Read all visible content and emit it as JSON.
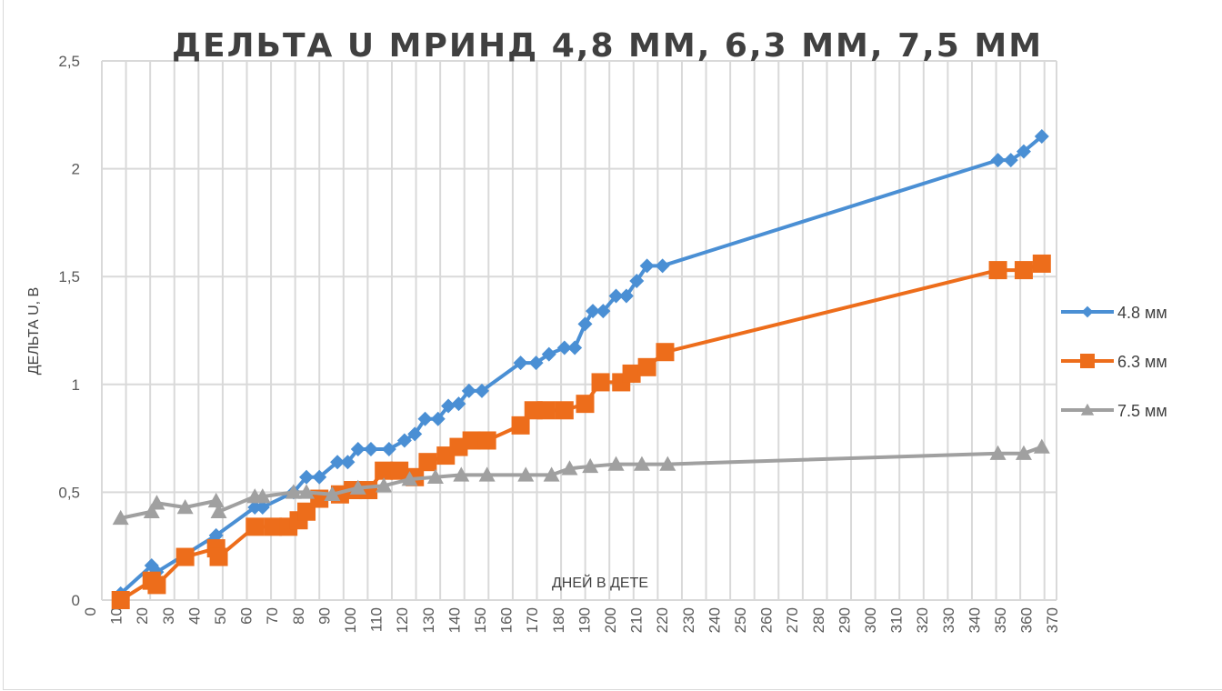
{
  "chart_data": {
    "type": "line",
    "title": "ДЕЛЬТА  U МРИНД 4,8 ММ, 6,3 ММ, 7,5 ММ",
    "xlabel": "ДНЕЙ В ДЕТЕ",
    "ylabel": "ДЕЛЬТА U, В",
    "xlim": [
      0,
      370
    ],
    "ylim": [
      0,
      2.5
    ],
    "x_ticks": [
      "0",
      "10",
      "20",
      "30",
      "40",
      "50",
      "60",
      "70",
      "80",
      "90",
      "100",
      "110",
      "120",
      "130",
      "140",
      "150",
      "160",
      "170",
      "180",
      "190",
      "200",
      "210",
      "220",
      "230",
      "240",
      "250",
      "260",
      "270",
      "280",
      "290",
      "300",
      "310",
      "320",
      "330",
      "340",
      "350",
      "360",
      "370"
    ],
    "y_ticks": [
      "0",
      "0,5",
      "1",
      "1,5",
      "2",
      "2,5"
    ],
    "grid": true,
    "legend_position": "right",
    "series": [
      {
        "name": "4.8 мм",
        "color": "#4a8fd4",
        "marker": "diamond",
        "x": [
          8,
          20,
          22,
          45,
          60,
          63,
          75,
          80,
          85,
          92,
          96,
          100,
          105,
          112,
          118,
          122,
          126,
          131,
          135,
          139,
          143,
          148,
          163,
          169,
          174,
          180,
          184,
          188,
          191,
          195,
          200,
          204,
          208,
          212,
          218,
          348,
          353,
          358,
          365
        ],
        "y": [
          0.03,
          0.16,
          0.13,
          0.3,
          0.43,
          0.43,
          0.5,
          0.57,
          0.57,
          0.64,
          0.64,
          0.7,
          0.7,
          0.7,
          0.74,
          0.77,
          0.84,
          0.84,
          0.9,
          0.91,
          0.97,
          0.97,
          1.1,
          1.1,
          1.14,
          1.17,
          1.17,
          1.28,
          1.34,
          1.34,
          1.41,
          1.41,
          1.48,
          1.55,
          1.55,
          2.04,
          2.04,
          2.08,
          2.15
        ]
      },
      {
        "name": "6.3 мм",
        "color": "#ed6d1b",
        "marker": "square",
        "x": [
          8,
          20,
          22,
          33,
          45,
          46,
          60,
          67,
          73,
          77,
          80,
          85,
          93,
          98,
          104,
          110,
          116,
          122,
          127,
          134,
          139,
          144,
          150,
          163,
          168,
          173,
          180,
          188,
          194,
          202,
          206,
          212,
          219,
          348,
          358,
          365
        ],
        "y": [
          0,
          0.09,
          0.07,
          0.2,
          0.24,
          0.2,
          0.34,
          0.34,
          0.34,
          0.37,
          0.41,
          0.47,
          0.49,
          0.51,
          0.51,
          0.6,
          0.6,
          0.57,
          0.64,
          0.67,
          0.71,
          0.74,
          0.74,
          0.81,
          0.88,
          0.88,
          0.88,
          0.91,
          1.01,
          1.01,
          1.05,
          1.08,
          1.15,
          1.53,
          1.53,
          1.56
        ]
      },
      {
        "name": "7.5 мм",
        "color": "#a0a0a0",
        "marker": "triangle",
        "x": [
          8,
          20,
          22,
          33,
          45,
          46,
          60,
          63,
          75,
          80,
          90,
          100,
          110,
          120,
          130,
          140,
          150,
          165,
          175,
          182,
          190,
          200,
          210,
          220,
          348,
          358,
          365
        ],
        "y": [
          0.38,
          0.41,
          0.45,
          0.43,
          0.46,
          0.41,
          0.48,
          0.48,
          0.5,
          0.5,
          0.49,
          0.52,
          0.53,
          0.56,
          0.57,
          0.58,
          0.58,
          0.58,
          0.58,
          0.61,
          0.62,
          0.63,
          0.63,
          0.63,
          0.68,
          0.68,
          0.71
        ]
      }
    ]
  }
}
